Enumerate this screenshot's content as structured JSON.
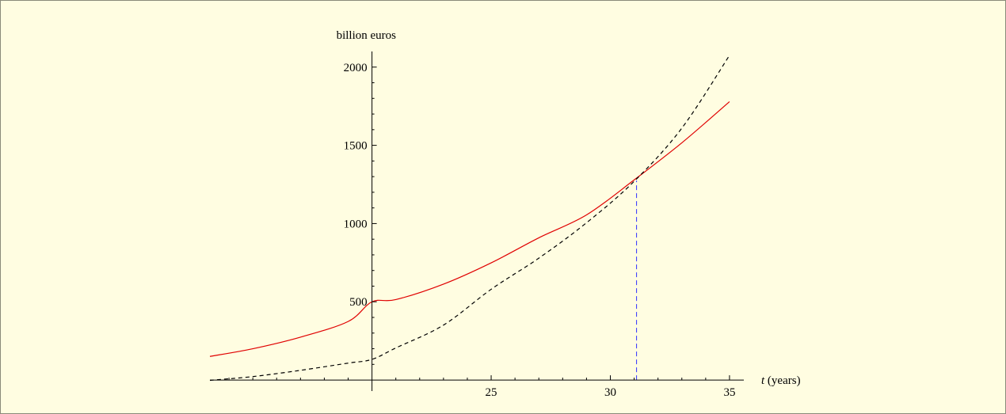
{
  "chart_data": {
    "type": "line",
    "ylabel": "billion euros",
    "xlabel_var": "t",
    "xlabel_unit": " (years)",
    "xlim": [
      13.2,
      35.6
    ],
    "ylim": [
      -30,
      2100
    ],
    "axis_origin": {
      "x": 20,
      "y": 0
    },
    "x_ticks_major": [
      25,
      30,
      35
    ],
    "x_ticks_minor": [
      14,
      15,
      16,
      17,
      18,
      19,
      21,
      22,
      23,
      24,
      26,
      27,
      28,
      29,
      31,
      32,
      33,
      34
    ],
    "y_ticks_major": [
      500,
      1000,
      1500,
      2000
    ],
    "y_ticks_minor": [
      100,
      200,
      300,
      400,
      600,
      700,
      800,
      900,
      1100,
      1200,
      1300,
      1400,
      1600,
      1700,
      1800,
      1900
    ],
    "series": [
      {
        "style": "solid",
        "color": "#e00000",
        "x": [
          13.2,
          15,
          17,
          19,
          20,
          21,
          23,
          25,
          27,
          29,
          31,
          33,
          35
        ],
        "y": [
          151,
          200,
          274,
          374,
          500,
          514,
          613,
          749,
          909,
          1055,
          1279,
          1516,
          1779
        ]
      },
      {
        "style": "dashed",
        "color": "#000000",
        "x": [
          13.2,
          15,
          17,
          19,
          20,
          21,
          23,
          25,
          27,
          29,
          31,
          33,
          35
        ],
        "y": [
          -2,
          22,
          62,
          108,
          132,
          205,
          351,
          580,
          779,
          1005,
          1270,
          1610,
          2075
        ]
      }
    ],
    "annotations": [
      {
        "type": "vertical-dashed-line",
        "x": 31.1,
        "y_from": 0,
        "y_to": 1275,
        "color": "#3030ff"
      }
    ]
  }
}
